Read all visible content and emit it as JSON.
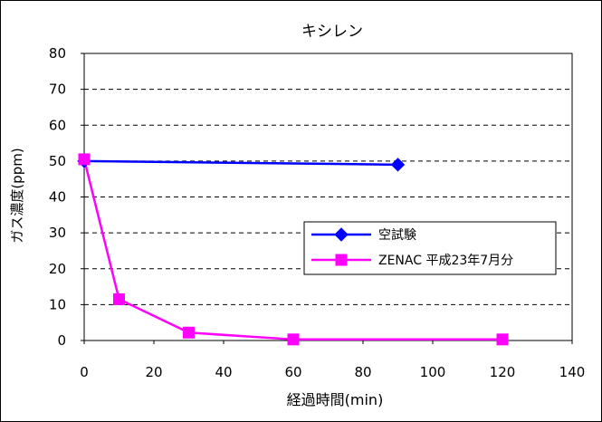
{
  "chart_data": {
    "type": "line",
    "title": "キシレン",
    "xlabel": "経過時間(min)",
    "ylabel": "ガス濃度(ppm)",
    "xlim": [
      0,
      140
    ],
    "ylim": [
      0,
      80
    ],
    "x_ticks": [
      0,
      20,
      40,
      60,
      80,
      100,
      120,
      140
    ],
    "y_ticks": [
      0,
      10,
      20,
      30,
      40,
      50,
      60,
      70,
      80
    ],
    "x_tick_labels": [
      "0",
      "20",
      "40",
      "60",
      "80",
      "100",
      "120",
      "140"
    ],
    "y_tick_labels": [
      "0",
      "10",
      "20",
      "30",
      "40",
      "50",
      "60",
      "70",
      "80"
    ],
    "grid": "horizontal-dashed",
    "legend_position": "right",
    "series": [
      {
        "name": "空試験",
        "color": "#0000ff",
        "marker": "diamond",
        "points": [
          {
            "x": 0,
            "y": 50
          },
          {
            "x": 90,
            "y": 49
          }
        ]
      },
      {
        "name": "ZENAC 平成23年7月分",
        "color": "#ff00ff",
        "marker": "square",
        "points": [
          {
            "x": 0,
            "y": 50.5
          },
          {
            "x": 10,
            "y": 11.5
          },
          {
            "x": 30,
            "y": 2.2
          },
          {
            "x": 60,
            "y": 0.3
          },
          {
            "x": 120,
            "y": 0.3
          }
        ]
      }
    ]
  }
}
